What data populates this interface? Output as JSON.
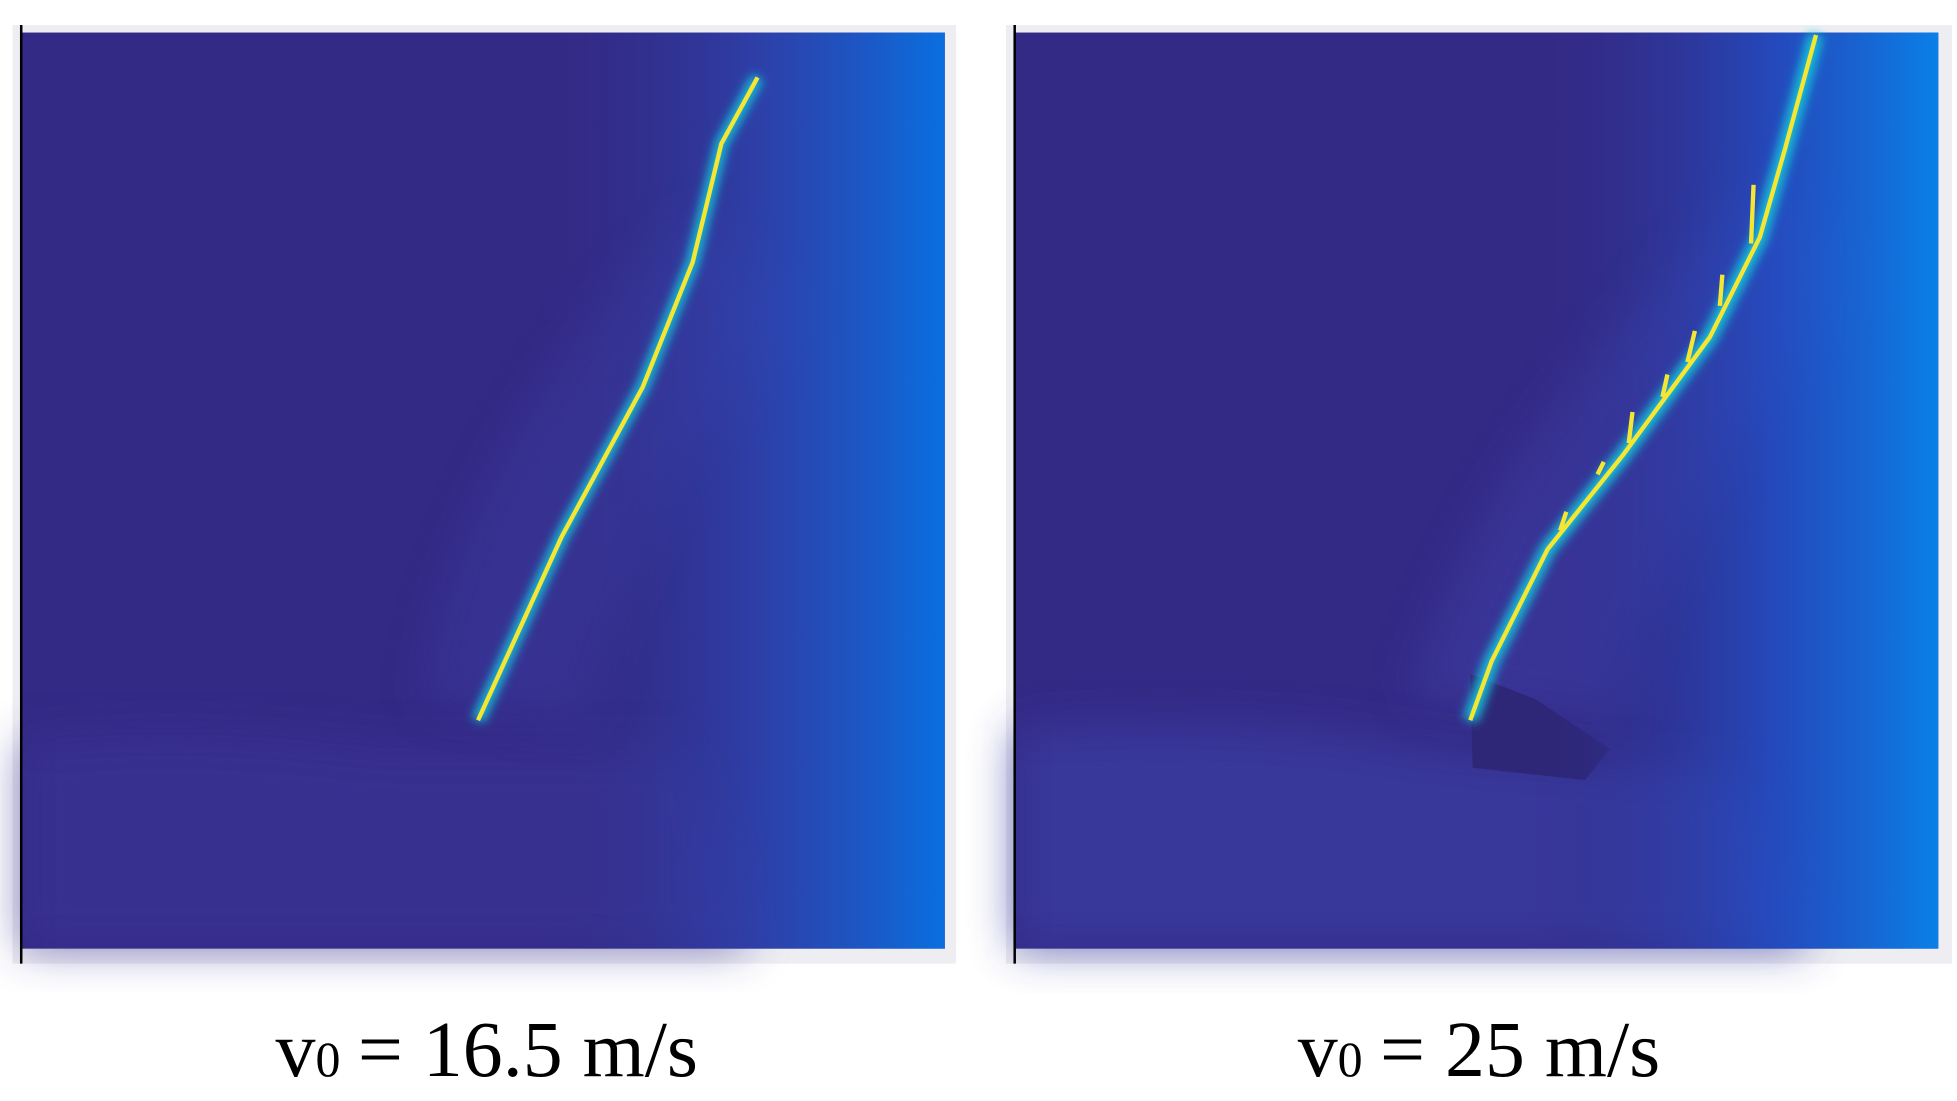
{
  "panels": [
    {
      "caption": {
        "symbol": "v",
        "subscript": "0",
        "text": "= 16.5 m/s"
      }
    },
    {
      "caption": {
        "symbol": "v",
        "subscript": "0",
        "text": "= 25 m/s"
      }
    }
  ]
}
